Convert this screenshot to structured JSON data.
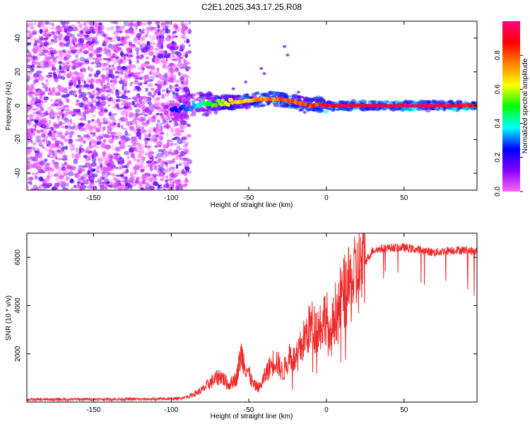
{
  "title": "C2E1.2025.343.17.25.R08",
  "chart_data": [
    {
      "type": "heatmap",
      "title": "C2E1.2025.343.17.25.R08",
      "xlabel": "Height of straight line (km)",
      "ylabel": "Frequency (Hz)",
      "xlim": [
        -193,
        97
      ],
      "ylim": [
        -50,
        50
      ],
      "xticks": [
        -150,
        -100,
        -50,
        0,
        50
      ],
      "yticks": [
        -40,
        -20,
        0,
        20,
        40
      ],
      "colorbar": {
        "label": "Normalized spectral amplitude",
        "range": [
          0,
          1
        ],
        "ticks": [
          "0.0",
          "0.2",
          "0.4",
          "0.6",
          "0.8"
        ],
        "colors": [
          "#ff66ff",
          "#8000ff",
          "#0000ff",
          "#00ffff",
          "#00ff00",
          "#ffff00",
          "#ff8000",
          "#ff0000",
          "#ff0080"
        ]
      },
      "noise_region_x": [
        -193,
        -88
      ],
      "ridge": {
        "x": [
          -100,
          -90,
          -80,
          -70,
          -60,
          -50,
          -40,
          -30,
          -20,
          -10,
          -5,
          0,
          10,
          50,
          97
        ],
        "freq": [
          -2,
          -1,
          1,
          2,
          2,
          3,
          4,
          4,
          2,
          0,
          1,
          0,
          0,
          0,
          0
        ],
        "amplitude": [
          0.25,
          0.3,
          0.45,
          0.6,
          0.7,
          0.75,
          0.8,
          0.85,
          0.85,
          0.9,
          0.9,
          1.0,
          1.0,
          1.0,
          0.95
        ]
      }
    },
    {
      "type": "line",
      "xlabel": "Height of straight line (km)",
      "ylabel": "SNR (10 * v/v)",
      "xlim": [
        -193,
        97
      ],
      "ylim": [
        0,
        7000
      ],
      "xticks": [
        -150,
        -100,
        -50,
        0,
        50
      ],
      "yticks": [
        2000,
        4000,
        6000
      ],
      "color": "#ee2a2a",
      "series": [
        {
          "name": "SNR",
          "x": [
            -193,
            -150,
            -110,
            -95,
            -88,
            -80,
            -75,
            -68,
            -63,
            -58,
            -55,
            -52,
            -47,
            -43,
            -38,
            -33,
            -28,
            -24,
            -20,
            -15,
            -10,
            -6,
            -2,
            0,
            2,
            5,
            10,
            15,
            20,
            25,
            30,
            40,
            50,
            60,
            70,
            80,
            90,
            97
          ],
          "y": [
            100,
            120,
            120,
            150,
            250,
            500,
            800,
            1100,
            700,
            1000,
            2000,
            1500,
            700,
            600,
            1300,
            1800,
            1200,
            2000,
            1700,
            2500,
            3200,
            3000,
            3400,
            3700,
            2300,
            3600,
            4400,
            4800,
            5300,
            5800,
            6300,
            6400,
            6400,
            6300,
            6200,
            6300,
            6300,
            6200
          ]
        }
      ]
    }
  ]
}
